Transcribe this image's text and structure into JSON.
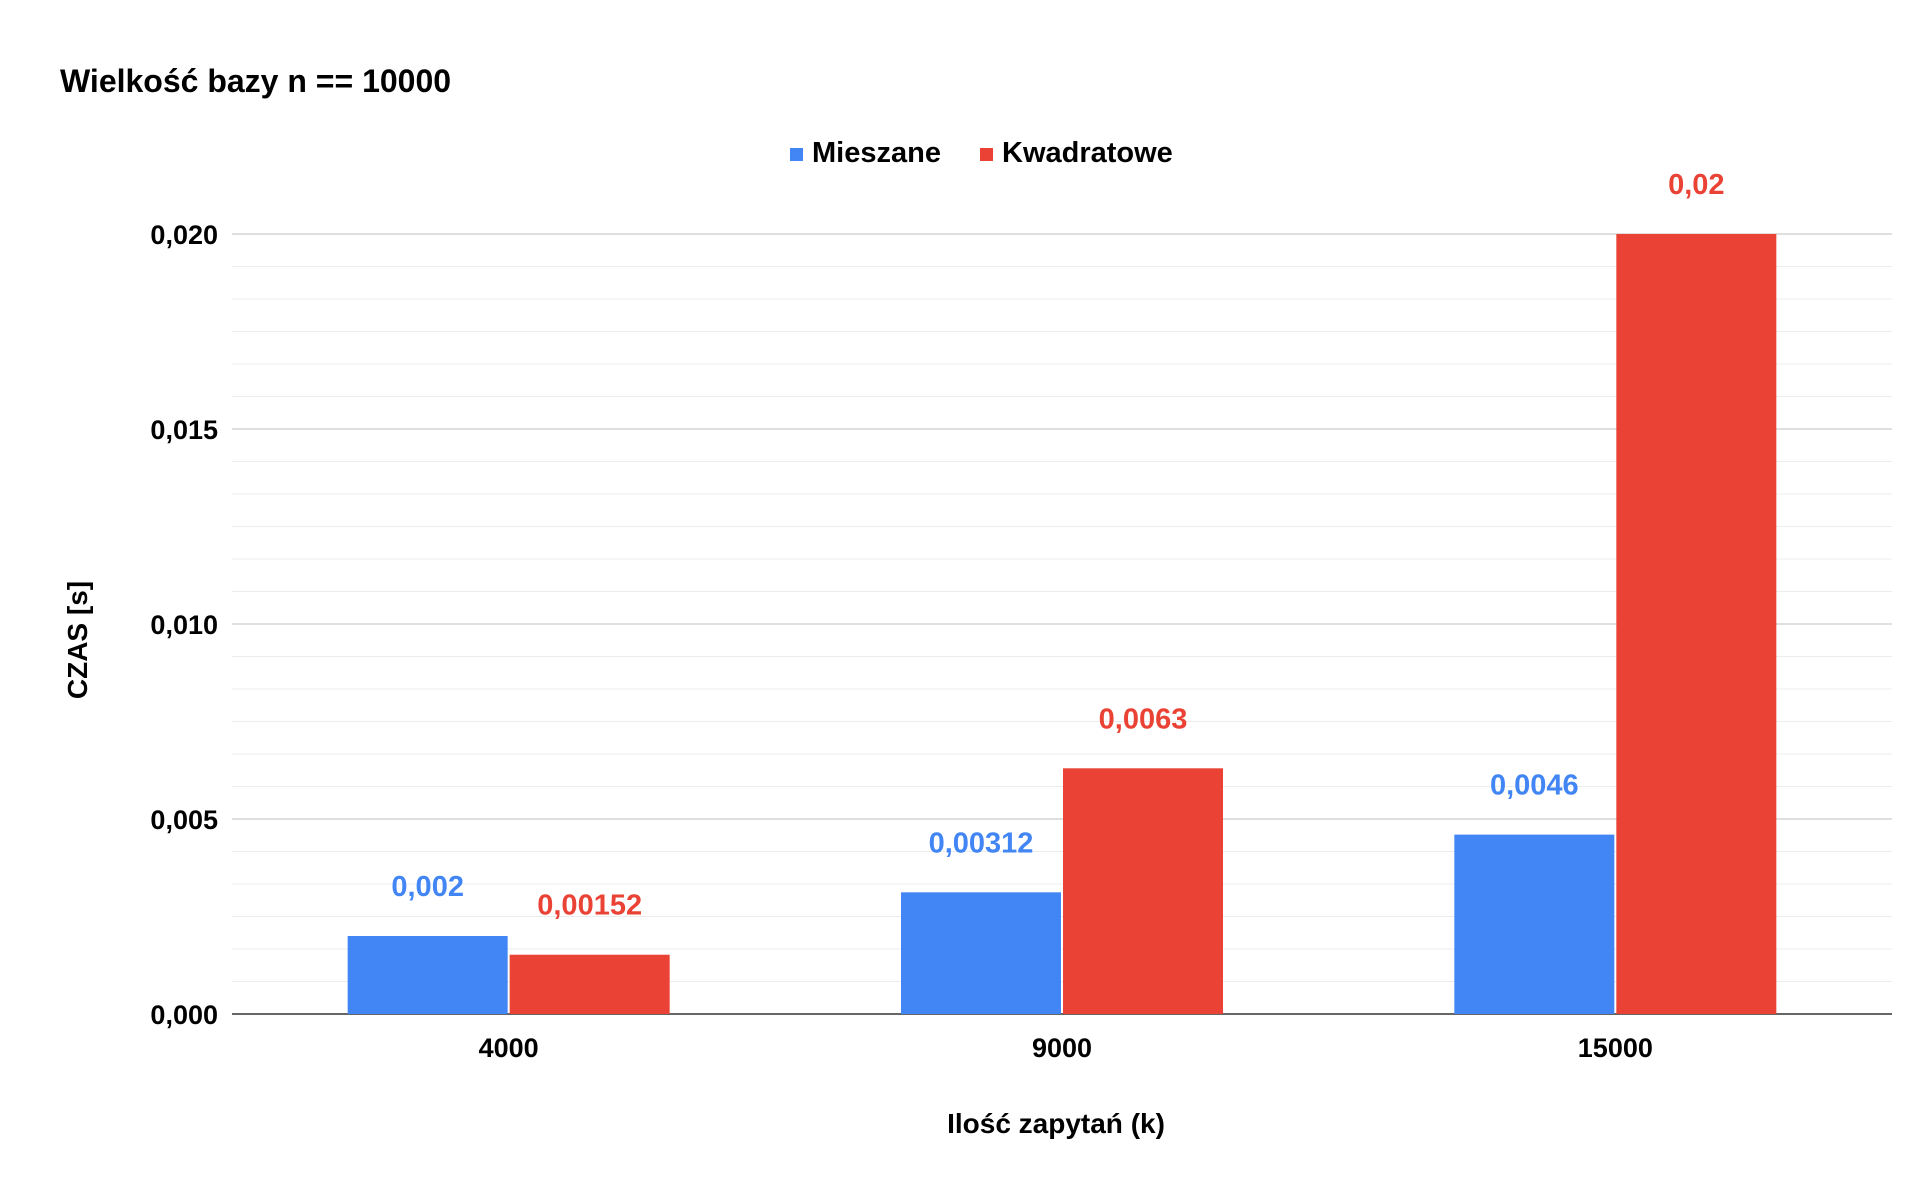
{
  "chart_data": {
    "type": "bar",
    "title": "Wielkość bazy n == 10000",
    "xlabel": "Ilość zapytań (k)",
    "ylabel": "CZAS [s]",
    "categories": [
      "4000",
      "9000",
      "15000"
    ],
    "series": [
      {
        "name": "Mieszane",
        "color": "#4285f4",
        "values": [
          0.002,
          0.00312,
          0.0046
        ],
        "labels": [
          "0,002",
          "0,00312",
          "0,0046"
        ]
      },
      {
        "name": "Kwadratowe",
        "color": "#ea4335",
        "values": [
          0.00152,
          0.0063,
          0.02
        ],
        "labels": [
          "0,00152",
          "0,0063",
          "0,02"
        ]
      }
    ],
    "ylim": [
      0,
      0.02
    ],
    "yticks": [
      0,
      0.005,
      0.01,
      0.015,
      0.02
    ],
    "ytick_labels": [
      "0,000",
      "0,005",
      "0,010",
      "0,015",
      "0,020"
    ],
    "minor_gridlines_per_major": 6,
    "grid": true,
    "legend_position": "top-center"
  }
}
